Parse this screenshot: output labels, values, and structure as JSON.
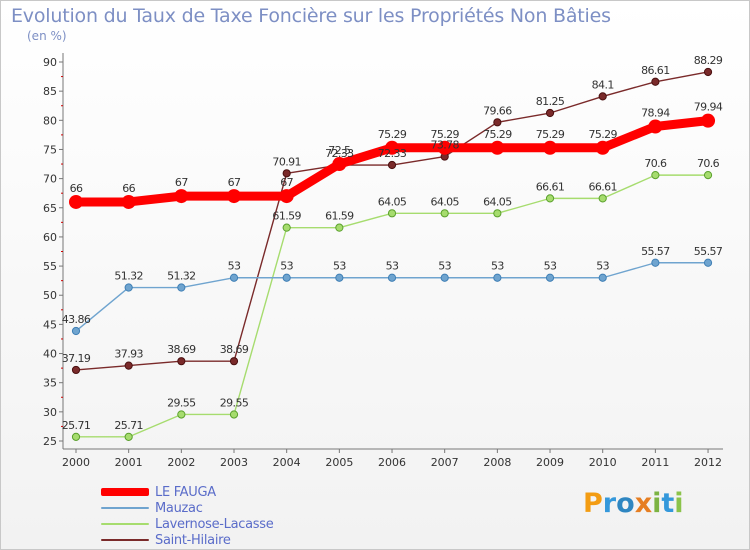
{
  "header": {
    "title": "Evolution du Taux de Taxe Foncière sur les Propriétés Non Bâties",
    "unit": "(en %)"
  },
  "logo": {
    "text": "Proxiti",
    "letters": [
      {
        "char": "P",
        "color": "#f39c12"
      },
      {
        "char": "r",
        "color": "#3498db"
      },
      {
        "char": "o",
        "color": "#2e86c1"
      },
      {
        "char": "x",
        "color": "#e67e22"
      },
      {
        "char": "i",
        "color": "#7cb342"
      },
      {
        "char": "t",
        "color": "#3498db"
      },
      {
        "char": "i",
        "color": "#8bc34a"
      }
    ]
  },
  "chart_data": {
    "type": "line",
    "x": [
      "2000",
      "2001",
      "2002",
      "2003",
      "2004",
      "2005",
      "2006",
      "2007",
      "2008",
      "2009",
      "2010",
      "2011",
      "2012"
    ],
    "ylim": [
      25,
      90
    ],
    "yticks": [
      25,
      30,
      35,
      40,
      45,
      50,
      55,
      60,
      65,
      70,
      75,
      80,
      85,
      90
    ],
    "grid": false,
    "legend_position": "bottom-left",
    "series": [
      {
        "name": "LE FAUGA",
        "color": "#ff0000",
        "values": [
          66,
          66,
          67,
          67,
          67,
          72.5,
          75.29,
          75.29,
          75.29,
          75.29,
          75.29,
          78.94,
          79.94
        ],
        "labels": [
          "66",
          "66",
          "67",
          "67",
          "67",
          "72.5",
          "75.29",
          "75.29",
          "75.29",
          "75.29",
          "75.29",
          "78.94",
          "79.94"
        ]
      },
      {
        "name": "Mauzac",
        "color": "#6fa4cf",
        "values": [
          43.86,
          51.32,
          51.32,
          53,
          53,
          53,
          53,
          53,
          53,
          53,
          53,
          55.57,
          55.57
        ],
        "labels": [
          "43.86",
          "51.32",
          "51.32",
          "53",
          "53",
          "53",
          "53",
          "53",
          "53",
          "53",
          "53",
          "55.57",
          "55.57"
        ]
      },
      {
        "name": "Lavernose-Lacasse",
        "color": "#a6dc6e",
        "values": [
          25.71,
          25.71,
          29.55,
          29.55,
          61.59,
          61.59,
          64.05,
          64.05,
          64.05,
          66.61,
          66.61,
          70.6,
          70.6
        ],
        "labels": [
          "25.71",
          "25.71",
          "29.55",
          "29.55",
          "61.59",
          "61.59",
          "64.05",
          "64.05",
          "64.05",
          "66.61",
          "66.61",
          "70.6",
          "70.6"
        ]
      },
      {
        "name": "Saint-Hilaire",
        "color": "#7a2a2a",
        "values": [
          37.19,
          37.93,
          38.69,
          38.69,
          70.91,
          72.33,
          72.33,
          73.78,
          79.66,
          81.25,
          84.1,
          86.61,
          88.29
        ],
        "labels": [
          "37.19",
          "37.93",
          "38.69",
          "38.69",
          "70.91",
          "72.33",
          "72.33",
          "73.78",
          "79.66",
          "81.25",
          "84.1",
          "86.61",
          "88.29"
        ]
      }
    ]
  }
}
